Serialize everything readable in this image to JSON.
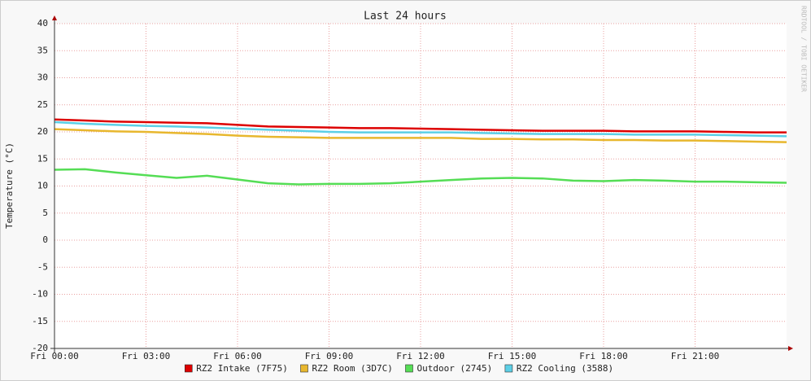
{
  "chart_data": {
    "type": "line",
    "title": "Last 24 hours",
    "ylabel": "Temperature (°C)",
    "watermark": "RRDTOOL / TOBI OETIKER",
    "x": [
      0,
      1,
      2,
      3,
      4,
      5,
      6,
      7,
      8,
      9,
      10,
      11,
      12,
      13,
      14,
      15,
      16,
      17,
      18,
      19,
      20,
      21,
      22,
      23,
      24
    ],
    "xlim": [
      0,
      24
    ],
    "xticks": [
      {
        "value": 0,
        "label": "Fri 00:00"
      },
      {
        "value": 3,
        "label": "Fri 03:00"
      },
      {
        "value": 6,
        "label": "Fri 06:00"
      },
      {
        "value": 9,
        "label": "Fri 09:00"
      },
      {
        "value": 12,
        "label": "Fri 12:00"
      },
      {
        "value": 15,
        "label": "Fri 15:00"
      },
      {
        "value": 18,
        "label": "Fri 18:00"
      },
      {
        "value": 21,
        "label": "Fri 21:00"
      }
    ],
    "ylim": [
      -20,
      40
    ],
    "yticks": [
      -20,
      -15,
      -10,
      -5,
      0,
      5,
      10,
      15,
      20,
      25,
      30,
      35,
      40
    ],
    "grid": true,
    "legend": "bottom",
    "series": [
      {
        "name": "RZ2 Intake (7F75)",
        "color": "#dd0000",
        "values": [
          22.3,
          22.1,
          21.9,
          21.8,
          21.7,
          21.6,
          21.3,
          21.0,
          20.9,
          20.8,
          20.7,
          20.7,
          20.6,
          20.5,
          20.4,
          20.3,
          20.2,
          20.2,
          20.2,
          20.1,
          20.1,
          20.1,
          20.0,
          19.9,
          19.9
        ]
      },
      {
        "name": "RZ2 Room (3D7C)",
        "color": "#e8b72e",
        "values": [
          20.5,
          20.3,
          20.1,
          20.0,
          19.8,
          19.6,
          19.3,
          19.1,
          19.0,
          18.9,
          18.9,
          18.9,
          18.9,
          18.9,
          18.7,
          18.7,
          18.6,
          18.6,
          18.5,
          18.5,
          18.4,
          18.4,
          18.3,
          18.2,
          18.1
        ]
      },
      {
        "name": "Outdoor (2745)",
        "color": "#55dd55",
        "values": [
          13.0,
          13.1,
          12.5,
          12.0,
          11.5,
          11.9,
          11.2,
          10.5,
          10.3,
          10.4,
          10.4,
          10.5,
          10.8,
          11.1,
          11.4,
          11.5,
          11.4,
          11.0,
          10.9,
          11.1,
          11.0,
          10.8,
          10.8,
          10.7,
          10.6
        ]
      },
      {
        "name": "RZ2 Cooling (3588)",
        "color": "#5ccfe6",
        "values": [
          21.8,
          21.5,
          21.3,
          21.1,
          21.0,
          20.8,
          20.6,
          20.4,
          20.2,
          20.0,
          19.9,
          19.9,
          19.9,
          19.9,
          19.8,
          19.7,
          19.6,
          19.6,
          19.6,
          19.5,
          19.5,
          19.5,
          19.4,
          19.3,
          19.2
        ]
      }
    ]
  }
}
